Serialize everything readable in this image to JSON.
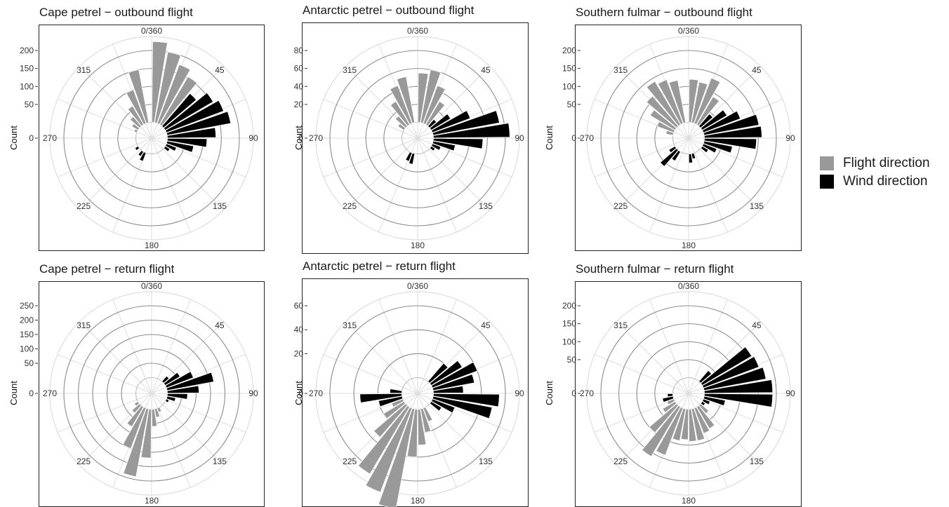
{
  "y_axis_label": "Count",
  "colors": {
    "flight": "#999999",
    "wind": "#000000"
  },
  "legend": [
    {
      "label": "Flight direction",
      "color": "#999999"
    },
    {
      "label": "Wind direction",
      "color": "#000000"
    }
  ],
  "chart_data": [
    {
      "type": "bar",
      "coord": "polar",
      "title": "Cape petrel − outbound flight",
      "ylabel": "Count",
      "yticks": [
        0,
        50,
        100,
        150,
        200
      ],
      "angle_labels": [
        "0/360",
        "45",
        "90",
        "135",
        "180",
        "225",
        "270",
        "315"
      ],
      "bin_width_deg": 10,
      "series": [
        {
          "name": "Flight direction",
          "color": "#999999",
          "bins": [
            [
              5,
              225
            ],
            [
              15,
              200
            ],
            [
              25,
              175
            ],
            [
              35,
              155
            ],
            [
              345,
              150
            ],
            [
              335,
              100
            ],
            [
              325,
              60
            ],
            [
              315,
              35
            ],
            [
              305,
              20
            ],
            [
              295,
              8
            ]
          ]
        },
        {
          "name": "Wind direction",
          "color": "#000000",
          "bins": [
            [
              45,
              120
            ],
            [
              55,
              155
            ],
            [
              65,
              170
            ],
            [
              75,
              180
            ],
            [
              85,
              135
            ],
            [
              95,
              110
            ],
            [
              105,
              75
            ],
            [
              115,
              30
            ],
            [
              125,
              15
            ],
            [
              205,
              25
            ],
            [
              215,
              15
            ],
            [
              235,
              10
            ]
          ]
        }
      ]
    },
    {
      "type": "bar",
      "coord": "polar",
      "title": "Antarctic petrel − outbound flight",
      "ylabel": "Count",
      "yticks": [
        0,
        20,
        40,
        60,
        80
      ],
      "angle_labels": [
        "0/360",
        "45",
        "90",
        "135",
        "180",
        "225",
        "270",
        "315"
      ],
      "bin_width_deg": 10,
      "series": [
        {
          "name": "Flight direction",
          "color": "#999999",
          "bins": [
            [
              5,
              55
            ],
            [
              15,
              60
            ],
            [
              25,
              45
            ],
            [
              35,
              30
            ],
            [
              345,
              52
            ],
            [
              335,
              45
            ],
            [
              325,
              30
            ],
            [
              315,
              15
            ],
            [
              305,
              8
            ]
          ]
        },
        {
          "name": "Wind direction",
          "color": "#000000",
          "bins": [
            [
              45,
              10
            ],
            [
              55,
              25
            ],
            [
              65,
              45
            ],
            [
              75,
              75
            ],
            [
              85,
              85
            ],
            [
              95,
              55
            ],
            [
              105,
              25
            ],
            [
              115,
              10
            ],
            [
              125,
              5
            ],
            [
              205,
              10
            ],
            [
              195,
              12
            ]
          ]
        }
      ]
    },
    {
      "type": "bar",
      "coord": "polar",
      "title": "Southern fulmar − outbound flight",
      "ylabel": "Count",
      "yticks": [
        0,
        50,
        100,
        150,
        200
      ],
      "angle_labels": [
        "0/360",
        "45",
        "90",
        "135",
        "180",
        "225",
        "270",
        "315"
      ],
      "bin_width_deg": 10,
      "series": [
        {
          "name": "Flight direction",
          "color": "#999999",
          "bins": [
            [
              5,
              120
            ],
            [
              15,
              115
            ],
            [
              25,
              135
            ],
            [
              35,
              90
            ],
            [
              345,
              120
            ],
            [
              335,
              130
            ],
            [
              325,
              140
            ],
            [
              315,
              110
            ],
            [
              305,
              80
            ],
            [
              295,
              50
            ],
            [
              285,
              20
            ]
          ]
        },
        {
          "name": "Wind direction",
          "color": "#000000",
          "bins": [
            [
              45,
              45
            ],
            [
              55,
              80
            ],
            [
              65,
              110
            ],
            [
              75,
              155
            ],
            [
              85,
              160
            ],
            [
              95,
              145
            ],
            [
              105,
              80
            ],
            [
              115,
              40
            ],
            [
              125,
              20
            ],
            [
              175,
              25
            ],
            [
              165,
              15
            ],
            [
              225,
              60
            ],
            [
              215,
              30
            ],
            [
              235,
              20
            ]
          ]
        }
      ]
    },
    {
      "type": "bar",
      "coord": "polar",
      "title": "Cape petrel − return flight",
      "ylabel": "Count",
      "yticks": [
        0,
        50,
        100,
        150,
        200,
        250
      ],
      "angle_labels": [
        "0/360",
        "45",
        "90",
        "135",
        "180",
        "225",
        "270",
        "315"
      ],
      "bin_width_deg": 10,
      "series": [
        {
          "name": "Flight direction",
          "color": "#999999",
          "bins": [
            [
              185,
              170
            ],
            [
              195,
              240
            ],
            [
              205,
              150
            ],
            [
              215,
              80
            ],
            [
              175,
              60
            ],
            [
              165,
              30
            ],
            [
              225,
              35
            ],
            [
              235,
              15
            ],
            [
              155,
              15
            ]
          ]
        },
        {
          "name": "Wind direction",
          "color": "#000000",
          "bins": [
            [
              45,
              25
            ],
            [
              55,
              60
            ],
            [
              65,
              100
            ],
            [
              75,
              165
            ],
            [
              85,
              110
            ],
            [
              95,
              70
            ],
            [
              105,
              30
            ],
            [
              115,
              10
            ]
          ]
        }
      ]
    },
    {
      "type": "bar",
      "coord": "polar",
      "title": "Antarctic petrel − return flight",
      "ylabel": "Count",
      "yticks": [
        0,
        20,
        40,
        60
      ],
      "angle_labels": [
        "0/360",
        "45",
        "90",
        "135",
        "180",
        "225",
        "270",
        "315"
      ],
      "bin_width_deg": 10,
      "series": [
        {
          "name": "Flight direction",
          "color": "#999999",
          "bins": [
            [
              195,
              85
            ],
            [
              205,
              75
            ],
            [
              215,
              65
            ],
            [
              225,
              35
            ],
            [
              185,
              40
            ],
            [
              175,
              30
            ],
            [
              165,
              20
            ],
            [
              235,
              20
            ],
            [
              155,
              12
            ],
            [
              245,
              10
            ]
          ]
        },
        {
          "name": "Wind direction",
          "color": "#000000",
          "bins": [
            [
              45,
              20
            ],
            [
              55,
              30
            ],
            [
              65,
              40
            ],
            [
              75,
              35
            ],
            [
              85,
              25
            ],
            [
              95,
              55
            ],
            [
              105,
              50
            ],
            [
              115,
              20
            ],
            [
              125,
              10
            ],
            [
              265,
              35
            ],
            [
              255,
              20
            ],
            [
              275,
              10
            ]
          ]
        }
      ]
    },
    {
      "type": "bar",
      "coord": "polar",
      "title": "Southern fulmar − return flight",
      "ylabel": "Count",
      "yticks": [
        0,
        50,
        100,
        150,
        200
      ],
      "angle_labels": [
        "0/360",
        "45",
        "90",
        "135",
        "180",
        "225",
        "270",
        "315"
      ],
      "bin_width_deg": 10,
      "series": [
        {
          "name": "Flight direction",
          "color": "#999999",
          "bins": [
            [
              215,
              160
            ],
            [
              205,
              140
            ],
            [
              195,
              90
            ],
            [
              185,
              85
            ],
            [
              175,
              90
            ],
            [
              165,
              90
            ],
            [
              155,
              75
            ],
            [
              145,
              70
            ],
            [
              225,
              100
            ],
            [
              235,
              40
            ],
            [
              135,
              30
            ],
            [
              245,
              20
            ]
          ]
        },
        {
          "name": "Wind direction",
          "color": "#000000",
          "bins": [
            [
              45,
              40
            ],
            [
              55,
              160
            ],
            [
              65,
              165
            ],
            [
              75,
              175
            ],
            [
              85,
              190
            ],
            [
              95,
              190
            ],
            [
              105,
              60
            ],
            [
              115,
              20
            ],
            [
              125,
              10
            ],
            [
              255,
              30
            ],
            [
              265,
              15
            ]
          ]
        }
      ]
    }
  ]
}
